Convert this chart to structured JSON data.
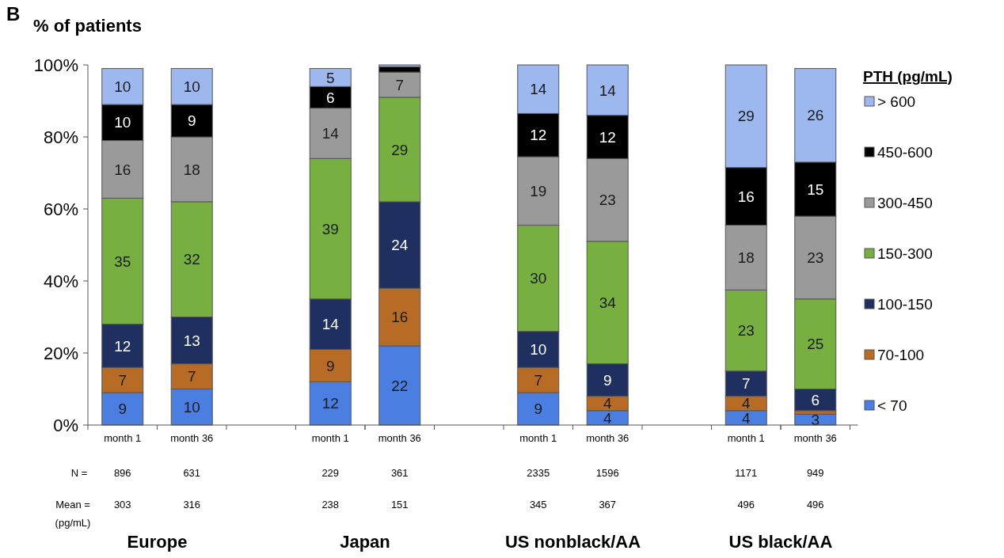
{
  "chart_data": {
    "type": "bar",
    "stacked": true,
    "ylabel": "% of patients",
    "legend_title": "PTH (pg/mL)",
    "legend": "right",
    "categories": [
      "month 1",
      "month 36",
      null,
      "month 1",
      "month 36",
      null,
      "month 1",
      "month 36",
      null,
      "month 1",
      "month 36"
    ],
    "ylim": [
      0,
      100
    ],
    "yticks": [
      {
        "value": 0,
        "label": "0%"
      },
      {
        "value": 20,
        "label": "20%"
      },
      {
        "value": 40,
        "label": "40%"
      },
      {
        "value": 60,
        "label": "60%"
      },
      {
        "value": 80,
        "label": "80%"
      },
      {
        "value": 100,
        "label": "100%"
      }
    ],
    "series": [
      {
        "name": "< 70",
        "color": "#4a7ee0",
        "values": [
          9,
          10,
          null,
          12,
          22,
          null,
          9,
          4,
          null,
          4,
          3
        ],
        "value_labels": [
          "9",
          "10",
          null,
          "12",
          "22",
          null,
          "9",
          "4",
          null,
          "4",
          "3"
        ]
      },
      {
        "name": "70-100",
        "color": "#b86b25",
        "values": [
          7,
          7,
          null,
          9,
          16,
          null,
          7,
          4,
          null,
          4,
          1
        ],
        "value_labels": [
          "7",
          "7",
          null,
          "9",
          "16",
          null,
          "7",
          "4",
          null,
          "4",
          null
        ]
      },
      {
        "name": "100-150",
        "color": "#1f2f5f",
        "values": [
          12,
          13,
          null,
          14,
          24,
          null,
          10,
          9,
          null,
          7,
          6
        ],
        "value_labels": [
          "12",
          "13",
          null,
          "14",
          "24",
          null,
          "10",
          "9",
          null,
          "7",
          "6"
        ]
      },
      {
        "name": "150-300",
        "color": "#77b041",
        "values": [
          35,
          32,
          null,
          39,
          29,
          null,
          29.5,
          34,
          null,
          22.5,
          25
        ],
        "value_labels": [
          "35",
          "32",
          null,
          "39",
          "29",
          null,
          "30",
          "34",
          null,
          "23",
          "25"
        ]
      },
      {
        "name": "300-450",
        "color": "#9a9a9a",
        "values": [
          16,
          18,
          null,
          14,
          7,
          null,
          19,
          23,
          null,
          18,
          23
        ],
        "value_labels": [
          "16",
          "18",
          null,
          "14",
          "7",
          null,
          "19",
          "23",
          null,
          "18",
          "23"
        ]
      },
      {
        "name": "450-600",
        "color": "#000000",
        "values": [
          10,
          9,
          null,
          6,
          1.5,
          null,
          12,
          12,
          null,
          16,
          15
        ],
        "value_labels": [
          "10",
          "9",
          null,
          "6",
          null,
          null,
          "12",
          "12",
          null,
          "16",
          "15"
        ]
      },
      {
        "name": "> 600",
        "color": "#9db7ef",
        "values": [
          10,
          10,
          null,
          5,
          0.5,
          null,
          13.5,
          14,
          null,
          28.5,
          26
        ],
        "value_labels": [
          "10",
          "10",
          null,
          "5",
          null,
          null,
          "14",
          "14",
          null,
          "29",
          "26"
        ]
      }
    ],
    "annotations": [
      "Europe",
      "Japan",
      "US nonblack/AA",
      "US black/AA",
      "N =",
      "896",
      "631",
      "229",
      "361",
      "2335",
      "1596",
      "1171",
      "949",
      "Mean =",
      "(pg/mL)",
      "303",
      "316",
      "238",
      "151",
      "345",
      "367",
      "496",
      "496",
      "B"
    ]
  }
}
